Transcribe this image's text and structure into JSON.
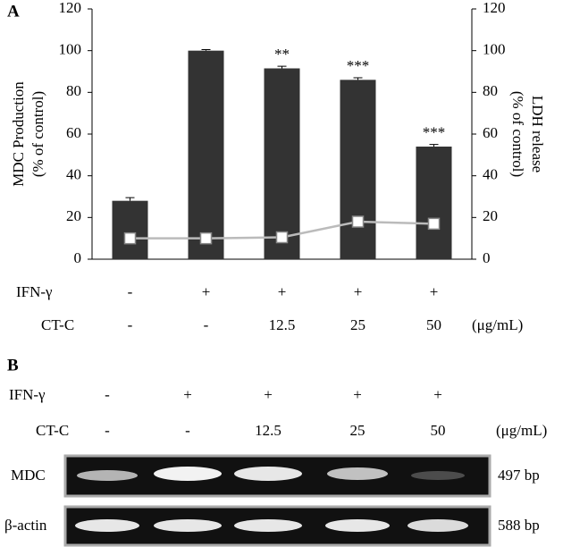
{
  "chart_data": {
    "type": "bar",
    "panel_label": "A",
    "ylabel": [
      "MDC Production",
      "(% of control)"
    ],
    "y2label": [
      "LDH release",
      "(% of control)"
    ],
    "ylim": [
      0,
      120
    ],
    "yticks": [
      0,
      20,
      40,
      60,
      80,
      100,
      120
    ],
    "y2lim": [
      0,
      120
    ],
    "y2ticks": [
      0,
      20,
      40,
      60,
      80,
      100,
      120
    ],
    "series": [
      {
        "color": "#333333",
        "values": [
          28,
          100,
          91.5,
          86,
          54
        ],
        "errors": [
          1.5,
          0.5,
          1,
          1,
          1
        ],
        "annotations": [
          null,
          null,
          "**",
          "***",
          "***"
        ]
      },
      {
        "type": "line",
        "axis": "y2",
        "color": "#bbbbbb",
        "values": [
          10,
          10,
          10.5,
          18,
          17
        ]
      }
    ],
    "conditions": [
      {
        "name": "IFN-γ",
        "values": [
          "-",
          "+",
          "+",
          "+",
          "+"
        ]
      },
      {
        "name": "CT-C",
        "values": [
          "-",
          "-",
          "12.5",
          "25",
          "50"
        ]
      }
    ],
    "unit": "(μg/mL)"
  },
  "gel": {
    "panel_label": "B",
    "conditions": [
      {
        "name": "IFN-γ",
        "values": [
          "-",
          "+",
          "+",
          "+",
          "+"
        ]
      },
      {
        "name": "CT-C",
        "values": [
          "-",
          "-",
          "12.5",
          "25",
          "50"
        ]
      }
    ],
    "unit": "(μg/mL)",
    "lanes": [
      {
        "name": "MDC",
        "size": "497 bp"
      },
      {
        "name": "β-actin",
        "size": "588 bp"
      }
    ]
  }
}
